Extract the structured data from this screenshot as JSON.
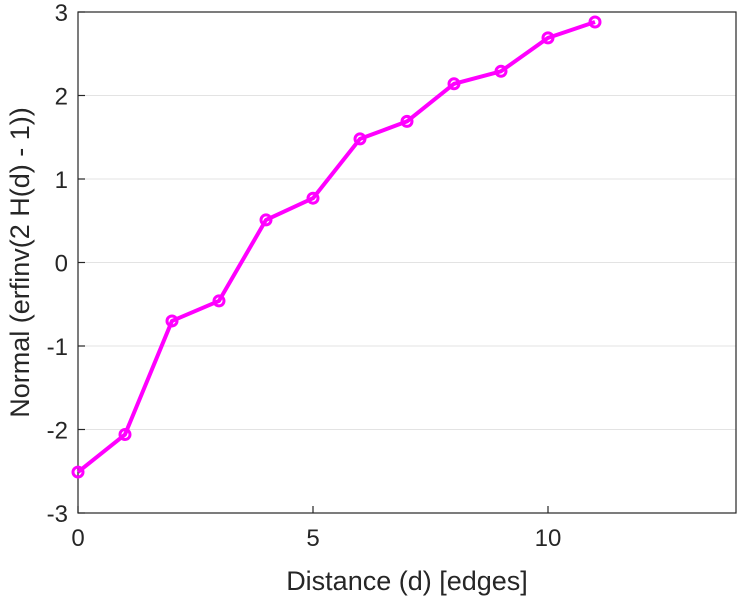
{
  "chart_data": {
    "type": "line",
    "title": "",
    "xlabel": "Distance (d) [edges]",
    "ylabel": "Normal (erfinv(2 H(d) - 1))",
    "xlim": [
      0,
      14
    ],
    "ylim": [
      -3,
      3
    ],
    "xticks": [
      0,
      5,
      10
    ],
    "yticks": [
      -3,
      -2,
      -1,
      0,
      1,
      2,
      3
    ],
    "grid": "horizontal",
    "series": [
      {
        "color": "#ff00ff",
        "marker": "circle",
        "x": [
          0,
          1,
          2,
          3,
          4,
          5,
          6,
          7,
          8,
          9,
          10,
          11
        ],
        "y": [
          -2.51,
          -2.06,
          -0.7,
          -0.46,
          0.51,
          0.77,
          1.48,
          1.69,
          2.14,
          2.29,
          2.69,
          2.88
        ]
      }
    ]
  }
}
